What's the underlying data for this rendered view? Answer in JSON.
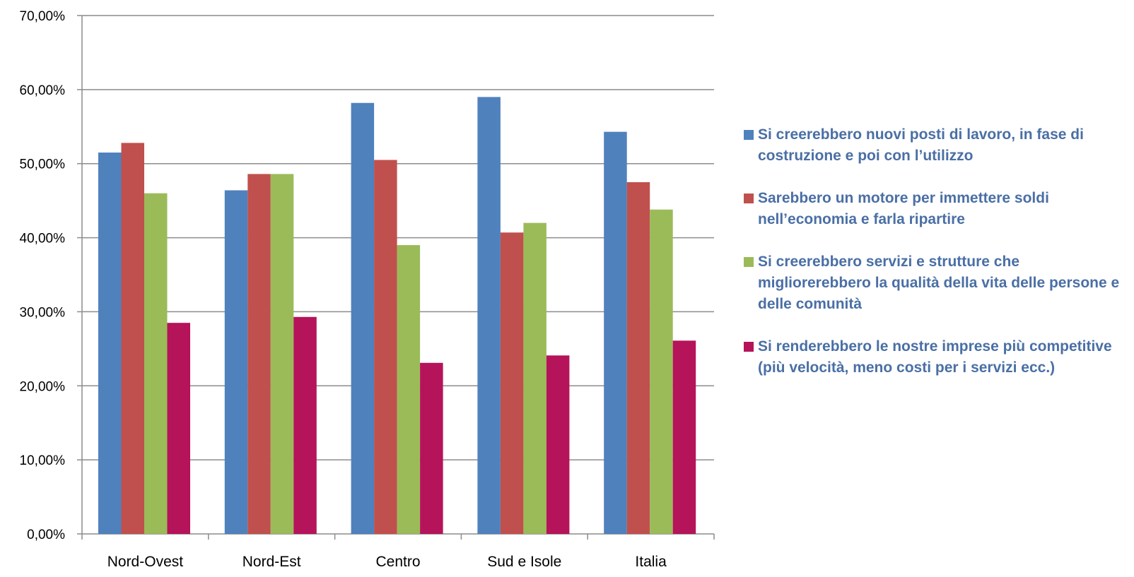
{
  "chart_data": {
    "type": "bar",
    "categories": [
      "Nord-Ovest",
      "Nord-Est",
      "Centro",
      "Sud e Isole",
      "Italia"
    ],
    "series": [
      {
        "name": "Si creerebbero nuovi posti di lavoro, in fase di costruzione e poi con l’utilizzo",
        "color": "#4F81BD",
        "values": [
          51.5,
          46.4,
          58.2,
          59.0,
          54.3
        ]
      },
      {
        "name": "Sarebbero un motore per immettere soldi nell’economia e farla ripartire",
        "color": "#C0504D",
        "values": [
          52.8,
          48.6,
          50.5,
          40.7,
          47.5
        ]
      },
      {
        "name": "Si creerebbero servizi e strutture che migliorerebbero la qualità della vita delle persone e delle comunità",
        "color": "#9BBB59",
        "values": [
          46.0,
          48.6,
          39.0,
          42.0,
          43.8
        ]
      },
      {
        "name": "Si renderebbero le nostre imprese più competitive (più velocità, meno costi per i servizi ecc.)",
        "color": "#B5135A",
        "values": [
          28.5,
          29.3,
          23.1,
          24.1,
          26.1
        ]
      }
    ],
    "ylim": [
      0,
      70
    ],
    "yticks": [
      "0,00%",
      "10,00%",
      "20,00%",
      "30,00%",
      "40,00%",
      "50,00%",
      "60,00%",
      "70,00%"
    ],
    "grid": true,
    "legend_position": "right",
    "title": "",
    "xlabel": "",
    "ylabel": ""
  }
}
